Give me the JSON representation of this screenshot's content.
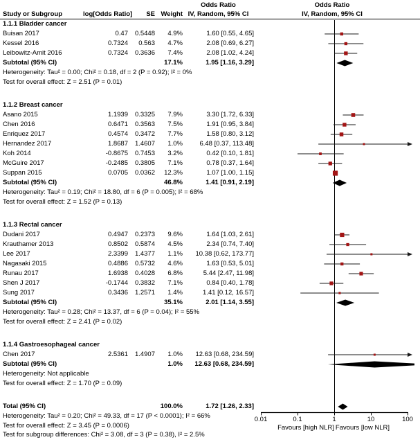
{
  "header": {
    "col_study": "Study or Subgroup",
    "col_logor": "log[Odds Ratio]",
    "col_se": "SE",
    "col_weight": "Weight",
    "or_line1": "Odds Ratio",
    "or_line2": "IV, Random, 95% CI",
    "plot_line1": "Odds Ratio",
    "plot_line2": "IV, Random, 95% CI"
  },
  "colors": {
    "marker": "#a31515",
    "ci_line": "#1a1a1a",
    "diamond": "#000000",
    "axis": "#000000"
  },
  "chart_data": {
    "type": "forest_plot",
    "effect_measure": "Odds Ratio",
    "model": "IV, Random, 95% CI",
    "axis": {
      "scale": "log",
      "min": 0.01,
      "max": 100,
      "ticks": [
        0.01,
        0.1,
        1,
        10,
        100
      ],
      "tick_labels": [
        "0.01",
        "0.1",
        "1",
        "10",
        "100"
      ],
      "label_left": "Favours [high NLR]",
      "label_right": "Favours [low NLR]"
    },
    "groups": [
      {
        "title": "1.1.1 Bladder cancer",
        "studies": [
          {
            "name": "Buisan 2017",
            "logor": "0.47",
            "se": "0.5448",
            "weight": "4.9%",
            "ci": "1.60 [0.55, 4.65]",
            "est": 1.6,
            "lo": 0.55,
            "hi": 4.65,
            "w": 4.9
          },
          {
            "name": "Kessel 2016",
            "logor": "0.7324",
            "se": "0.563",
            "weight": "4.7%",
            "ci": "2.08 [0.69, 6.27]",
            "est": 2.08,
            "lo": 0.69,
            "hi": 6.27,
            "w": 4.7
          },
          {
            "name": "Leibowitz-Amit 2016",
            "logor": "0.7324",
            "se": "0.3636",
            "weight": "7.4%",
            "ci": "2.08 [1.02, 4.24]",
            "est": 2.08,
            "lo": 1.02,
            "hi": 4.24,
            "w": 7.4
          }
        ],
        "subtotal": {
          "label": "Subtotal (95% CI)",
          "weight": "17.1%",
          "ci": "1.95 [1.16, 3.29]",
          "est": 1.95,
          "lo": 1.16,
          "hi": 3.29
        },
        "heterogeneity": "Heterogeneity: Tau² = 0.00; Chi² = 0.18, df = 2 (P = 0.92); I² = 0%",
        "test": "Test for overall effect: Z = 2.51 (P = 0.01)"
      },
      {
        "title": "1.1.2 Breast cancer",
        "studies": [
          {
            "name": "Asano 2015",
            "logor": "1.1939",
            "se": "0.3325",
            "weight": "7.9%",
            "ci": "3.30 [1.72, 6.33]",
            "est": 3.3,
            "lo": 1.72,
            "hi": 6.33,
            "w": 7.9
          },
          {
            "name": "Chen 2016",
            "logor": "0.6471",
            "se": "0.3563",
            "weight": "7.5%",
            "ci": "1.91 [0.95, 3.84]",
            "est": 1.91,
            "lo": 0.95,
            "hi": 3.84,
            "w": 7.5
          },
          {
            "name": "Enriquez 2017",
            "logor": "0.4574",
            "se": "0.3472",
            "weight": "7.7%",
            "ci": "1.58 [0.80, 3.12]",
            "est": 1.58,
            "lo": 0.8,
            "hi": 3.12,
            "w": 7.7
          },
          {
            "name": "Hernandez 2017",
            "logor": "1.8687",
            "se": "1.4607",
            "weight": "1.0%",
            "ci": "6.48 [0.37, 113.48]",
            "est": 6.48,
            "lo": 0.37,
            "hi": 113.48,
            "w": 1.0
          },
          {
            "name": "Koh 2014",
            "logor": "-0.8675",
            "se": "0.7453",
            "weight": "3.2%",
            "ci": "0.42 [0.10, 1.81]",
            "est": 0.42,
            "lo": 0.1,
            "hi": 1.81,
            "w": 3.2
          },
          {
            "name": "McGuire 2017",
            "logor": "-0.2485",
            "se": "0.3805",
            "weight": "7.1%",
            "ci": "0.78 [0.37, 1.64]",
            "est": 0.78,
            "lo": 0.37,
            "hi": 1.64,
            "w": 7.1
          },
          {
            "name": "Suppan 2015",
            "logor": "0.0705",
            "se": "0.0362",
            "weight": "12.3%",
            "ci": "1.07 [1.00, 1.15]",
            "est": 1.07,
            "lo": 1.0,
            "hi": 1.15,
            "w": 12.3
          }
        ],
        "subtotal": {
          "label": "Subtotal (95% CI)",
          "weight": "46.8%",
          "ci": "1.41 [0.91, 2.19]",
          "est": 1.41,
          "lo": 0.91,
          "hi": 2.19
        },
        "heterogeneity": "Heterogeneity: Tau² = 0.19; Chi² = 18.80, df = 6 (P = 0.005); I² = 68%",
        "test": "Test for overall effect: Z = 1.52 (P = 0.13)"
      },
      {
        "title": "1.1.3 Rectal cancer",
        "studies": [
          {
            "name": "Dudani 2017",
            "logor": "0.4947",
            "se": "0.2373",
            "weight": "9.6%",
            "ci": "1.64 [1.03, 2.61]",
            "est": 1.64,
            "lo": 1.03,
            "hi": 2.61,
            "w": 9.6
          },
          {
            "name": "Krauthamer 2013",
            "logor": "0.8502",
            "se": "0.5874",
            "weight": "4.5%",
            "ci": "2.34 [0.74, 7.40]",
            "est": 2.34,
            "lo": 0.74,
            "hi": 7.4,
            "w": 4.5
          },
          {
            "name": "Lee 2017",
            "logor": "2.3399",
            "se": "1.4377",
            "weight": "1.1%",
            "ci": "10.38 [0.62, 173.77]",
            "est": 10.38,
            "lo": 0.62,
            "hi": 173.77,
            "w": 1.1
          },
          {
            "name": "Nagasaki 2015",
            "logor": "0.4886",
            "se": "0.5732",
            "weight": "4.6%",
            "ci": "1.63 [0.53, 5.01]",
            "est": 1.63,
            "lo": 0.53,
            "hi": 5.01,
            "w": 4.6
          },
          {
            "name": "Runau 2017",
            "logor": "1.6938",
            "se": "0.4028",
            "weight": "6.8%",
            "ci": "5.44 [2.47, 11.98]",
            "est": 5.44,
            "lo": 2.47,
            "hi": 11.98,
            "w": 6.8
          },
          {
            "name": "Shen J 2017",
            "logor": "-0.1744",
            "se": "0.3832",
            "weight": "7.1%",
            "ci": "0.84 [0.40, 1.78]",
            "est": 0.84,
            "lo": 0.4,
            "hi": 1.78,
            "w": 7.1
          },
          {
            "name": "Sung 2017",
            "logor": "0.3436",
            "se": "1.2571",
            "weight": "1.4%",
            "ci": "1.41 [0.12, 16.57]",
            "est": 1.41,
            "lo": 0.12,
            "hi": 16.57,
            "w": 1.4
          }
        ],
        "subtotal": {
          "label": "Subtotal (95% CI)",
          "weight": "35.1%",
          "ci": "2.01 [1.14, 3.55]",
          "est": 2.01,
          "lo": 1.14,
          "hi": 3.55
        },
        "heterogeneity": "Heterogeneity: Tau² = 0.28; Chi² = 13.37, df = 6 (P = 0.04); I² = 55%",
        "test": "Test for overall effect: Z = 2.41 (P = 0.02)"
      },
      {
        "title": "1.1.4 Gastroesophageal cancer",
        "studies": [
          {
            "name": "Chen 2017",
            "logor": "2.5361",
            "se": "1.4907",
            "weight": "1.0%",
            "ci": "12.63 [0.68, 234.59]",
            "est": 12.63,
            "lo": 0.68,
            "hi": 234.59,
            "w": 1.0
          }
        ],
        "subtotal": {
          "label": "Subtotal (95% CI)",
          "weight": "1.0%",
          "ci": "12.63 [0.68, 234.59]",
          "est": 12.63,
          "lo": 0.68,
          "hi": 234.59
        },
        "heterogeneity": "Heterogeneity: Not applicable",
        "test": "Test for overall effect: Z = 1.70 (P = 0.09)"
      }
    ],
    "total": {
      "label": "Total (95% CI)",
      "weight": "100.0%",
      "ci": "1.72 [1.26, 2.33]",
      "est": 1.72,
      "lo": 1.26,
      "hi": 2.33,
      "heterogeneity": "Heterogeneity: Tau² = 0.20; Chi² = 49.33, df = 17 (P < 0.0001); I² = 66%",
      "test": "Test for overall effect: Z = 3.45 (P = 0.0006)",
      "subgroup_diff": "Test for subgroup differences: Chi² = 3.08, df = 3 (P = 0.38), I² = 2.5%"
    }
  }
}
